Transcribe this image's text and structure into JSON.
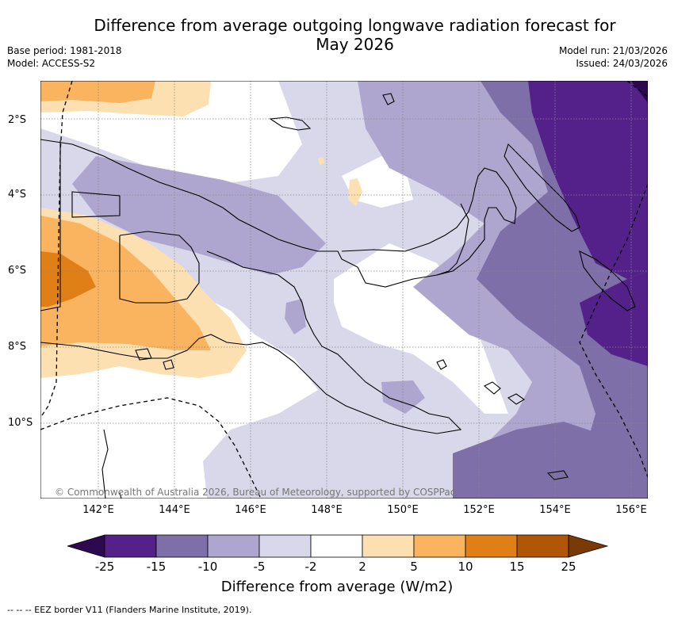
{
  "title": {
    "line1": "Difference from average outgoing longwave radiation forecast for",
    "line2": "May 2026"
  },
  "meta": {
    "base_period": "Base period: 1981-2018",
    "model": "Model: ACCESS-S2",
    "model_run": "Model run: 21/03/2026",
    "issued": "Issued: 24/03/2026"
  },
  "axes": {
    "lat_labels": [
      "2°S",
      "4°S",
      "6°S",
      "8°S",
      "10°S"
    ],
    "lon_labels": [
      "142°E",
      "144°E",
      "146°E",
      "148°E",
      "150°E",
      "152°E",
      "154°E",
      "156°E"
    ]
  },
  "copyright": "© Commonwealth of Australia 2026, Bureau of Meteorology, supported by COSPPac",
  "colorbar": {
    "ticks": [
      "-25",
      "-15",
      "-10",
      "-5",
      "-2",
      "2",
      "5",
      "10",
      "15",
      "25"
    ],
    "colors": [
      "#2d0a4f",
      "#54218a",
      "#7f6fa8",
      "#afa6cf",
      "#d8d8ea",
      "#ffffff",
      "#fde0b2",
      "#fab35f",
      "#e07f16",
      "#b05606",
      "#7a3a05"
    ],
    "label": "Difference from average (W/m2)"
  },
  "footnote": "-- -- -- EEZ border V11 (Flanders Marine Institute, 2019).",
  "legend_colors": {
    "land_line": "#000000",
    "grid": "#888888"
  }
}
